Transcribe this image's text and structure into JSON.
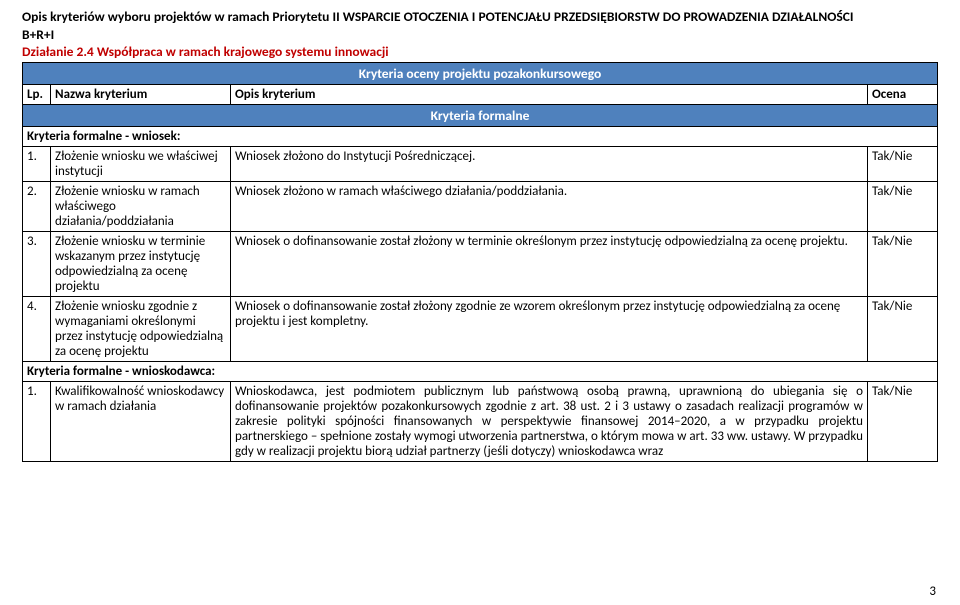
{
  "header": {
    "line1": "Opis kryteriów wyboru projektów w ramach Priorytetu II WSPARCIE OTOCZENIA I POTENCJAŁU PRZEDSIĘBIORSTW DO PROWADZENIA DZIAŁALNOŚCI",
    "line2": "B+R+I",
    "action": "Działanie 2.4 Współpraca w ramach krajowego systemu innowacji"
  },
  "table": {
    "banner1": "Kryteria oceny projektu pozakonkursowego",
    "head_lp": "Lp.",
    "head_name": "Nazwa kryterium",
    "head_desc": "Opis kryterium",
    "head_score": "Ocena",
    "banner2": "Kryteria formalne",
    "section_wniosek": "Kryteria formalne - wniosek:",
    "rows_wniosek": [
      {
        "num": "1.",
        "name": "Złożenie wniosku we właściwej instytucji",
        "desc": "Wniosek złożono do Instytucji Pośredniczącej.",
        "score": "Tak/Nie"
      },
      {
        "num": "2.",
        "name": "Złożenie wniosku w ramach właściwego działania/poddziałania",
        "desc": "Wniosek złożono w ramach właściwego działania/poddziałania.",
        "score": "Tak/Nie"
      },
      {
        "num": "3.",
        "name": "Złożenie wniosku w terminie wskazanym przez instytucję odpowiedzialną za ocenę projektu",
        "desc": "Wniosek o dofinansowanie został złożony w terminie określonym przez instytucję odpowiedzialną za ocenę projektu.",
        "score": "Tak/Nie"
      },
      {
        "num": "4.",
        "name": "Złożenie wniosku zgodnie z wymaganiami określonymi przez instytucję odpowiedzialną za ocenę projektu",
        "desc": "Wniosek o dofinansowanie został złożony zgodnie ze wzorem określonym przez instytucję odpowiedzialną za ocenę projektu i jest kompletny.",
        "score": "Tak/Nie"
      }
    ],
    "section_wnioskodawca": "Kryteria formalne - wnioskodawca:",
    "rows_wnioskodawca": [
      {
        "num": "1.",
        "name": "Kwalifikowalność wnioskodawcy w ramach działania",
        "desc": "Wnioskodawca, jest podmiotem publicznym lub państwową osobą prawną, uprawnioną do ubiegania się o dofinansowanie projektów pozakonkursowych zgodnie z art. 38 ust. 2 i 3 ustawy o zasadach realizacji programów w zakresie polityki spójności finansowanych w perspektywie finansowej 2014–2020, a w przypadku projektu partnerskiego – spełnione zostały wymogi utworzenia partnerstwa, o którym mowa w art. 33 ww. ustawy.\nW przypadku gdy w realizacji projektu biorą udział partnerzy (jeśli dotyczy) wnioskodawca wraz",
        "score": "Tak/Nie"
      }
    ]
  },
  "page_number": "3"
}
